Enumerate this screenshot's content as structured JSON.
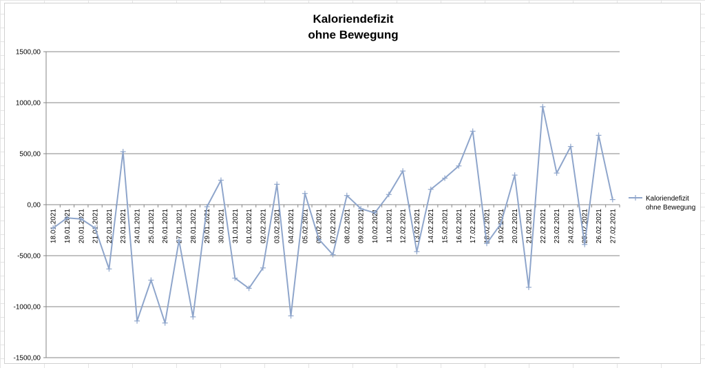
{
  "chart_data": {
    "type": "line",
    "title": [
      "Kaloriendefizit",
      "ohne Bewegung"
    ],
    "xlabel": "",
    "ylabel": "",
    "ylim": [
      -1500,
      1500
    ],
    "yticks": [
      1500,
      1000,
      500,
      0,
      -500,
      -1000,
      -1500
    ],
    "ytick_labels": [
      "1500,00",
      "1000,00",
      "500,00",
      "0,00",
      "-500,00",
      "-1000,00",
      "-1500,00"
    ],
    "grid": true,
    "legend_position": "right",
    "categories": [
      "18.01.2021",
      "19.01.2021",
      "20.01.2021",
      "21.01.2021",
      "22.01.2021",
      "23.01.2021",
      "24.01.2021",
      "25.01.2021",
      "26.01.2021",
      "27.01.2021",
      "28.01.2021",
      "29.01.2021",
      "30.01.2021",
      "31.01.2021",
      "01.02.2021",
      "02.02.2021",
      "03.02.2021",
      "04.02.2021",
      "05.02.2021",
      "06.02.2021",
      "07.02.2021",
      "08.02.2021",
      "09.02.2021",
      "10.02.2021",
      "11.02.2021",
      "12.02.2021",
      "13.02.2021",
      "14.02.2021",
      "15.02.2021",
      "16.02.2021",
      "17.02.2021",
      "18.02.2021",
      "19.02.2021",
      "20.02.2021",
      "21.02.2021",
      "22.02.2021",
      "23.02.2021",
      "24.02.2021",
      "25.02.2021",
      "26.02.2021",
      "27.02.2021"
    ],
    "series": [
      {
        "name": "Kaloriendefizit ohne Bewegung",
        "legend_lines": [
          "Kaloriendefizit",
          "ohne Bewegung"
        ],
        "color": "#8EA5CB",
        "values": [
          -230,
          -130,
          -140,
          -230,
          -630,
          520,
          -1140,
          -740,
          -1160,
          -350,
          -1100,
          -20,
          240,
          -720,
          -820,
          -620,
          200,
          -1090,
          110,
          -340,
          -490,
          90,
          -40,
          -80,
          100,
          330,
          -460,
          150,
          260,
          380,
          720,
          -380,
          -190,
          290,
          -810,
          960,
          310,
          570,
          -390,
          680,
          50
        ]
      }
    ]
  }
}
